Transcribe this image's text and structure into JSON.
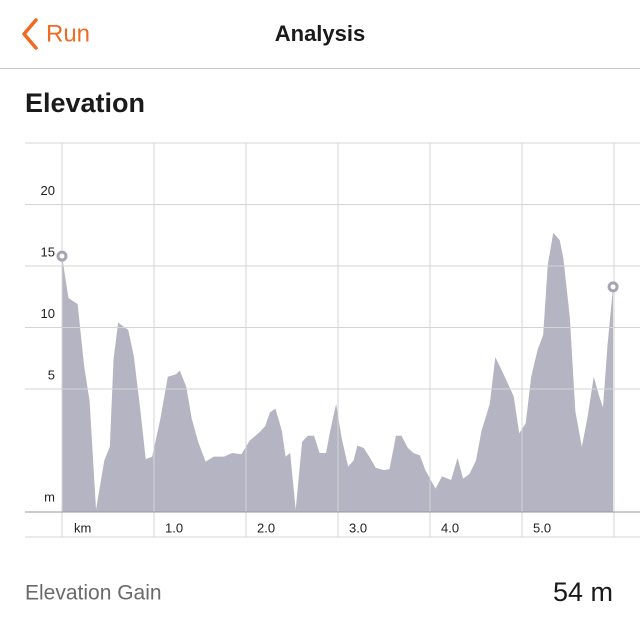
{
  "header": {
    "back": "Run",
    "title": "Analysis"
  },
  "section_title": "Elevation",
  "chart_data": {
    "type": "area",
    "color": "#b5b4c3",
    "x_label": "km",
    "y_label": "m",
    "x": [
      0,
      0.07,
      0.17,
      0.24,
      0.3,
      0.37,
      0.46,
      0.52,
      0.56,
      0.61,
      0.72,
      0.78,
      0.85,
      0.91,
      0.98,
      1.07,
      1.15,
      1.24,
      1.28,
      1.35,
      1.41,
      1.48,
      1.56,
      1.65,
      1.76,
      1.85,
      1.95,
      2.04,
      2.15,
      2.21,
      2.26,
      2.32,
      2.39,
      2.43,
      2.48,
      2.54,
      2.61,
      2.67,
      2.74,
      2.8,
      2.87,
      2.91,
      2.98,
      3.04,
      3.11,
      3.17,
      3.21,
      3.28,
      3.34,
      3.41,
      3.5,
      3.56,
      3.63,
      3.69,
      3.76,
      3.82,
      3.89,
      3.95,
      4.06,
      4.13,
      4.23,
      4.3,
      4.36,
      4.43,
      4.5,
      4.56,
      4.65,
      4.71,
      4.8,
      4.91,
      4.97,
      5.04,
      5.1,
      5.17,
      5.23,
      5.28,
      5.34,
      5.41,
      5.45,
      5.52,
      5.58,
      5.65,
      5.71,
      5.78,
      5.84,
      5.88,
      5.93,
      5.99
    ],
    "values": [
      15.8,
      12.4,
      11.9,
      6.9,
      4.0,
      -4.8,
      -0.8,
      0.3,
      7.4,
      10.4,
      9.8,
      7.7,
      3.4,
      -0.7,
      -0.5,
      2.6,
      6.0,
      6.2,
      6.5,
      5.2,
      2.6,
      0.7,
      -0.9,
      -0.5,
      -0.5,
      -0.2,
      -0.3,
      0.8,
      1.5,
      2.0,
      3.1,
      3.4,
      1.6,
      -0.5,
      -0.2,
      -4.8,
      0.7,
      1.2,
      1.2,
      -0.2,
      -0.2,
      1.4,
      3.8,
      1.0,
      -1.3,
      -0.8,
      0.4,
      0.2,
      -0.5,
      -1.4,
      -1.6,
      -1.5,
      1.2,
      1.2,
      0.2,
      -0.2,
      -0.4,
      -1.6,
      -3.1,
      -2.1,
      -2.4,
      -0.6,
      -2.3,
      -1.9,
      -0.8,
      1.6,
      3.8,
      7.6,
      6.2,
      4.4,
      1.4,
      2.2,
      6.0,
      8.2,
      9.4,
      15.1,
      17.7,
      17.1,
      15.6,
      10.8,
      3.2,
      0.3,
      2.6,
      6.0,
      4.4,
      3.5,
      8.6,
      13.3
    ],
    "xlim": [
      0,
      6
    ],
    "ylim": [
      -5,
      25
    ],
    "xticks": [
      {
        "value": 1,
        "label": "1.0"
      },
      {
        "value": 2,
        "label": "2.0"
      },
      {
        "value": 3,
        "label": "3.0"
      },
      {
        "value": 4,
        "label": "4.0"
      },
      {
        "value": 5,
        "label": "5.0"
      }
    ],
    "yticks": [
      5,
      10,
      15,
      20
    ],
    "grid": true
  },
  "summary": {
    "label": "Elevation Gain",
    "value": "54 m"
  }
}
